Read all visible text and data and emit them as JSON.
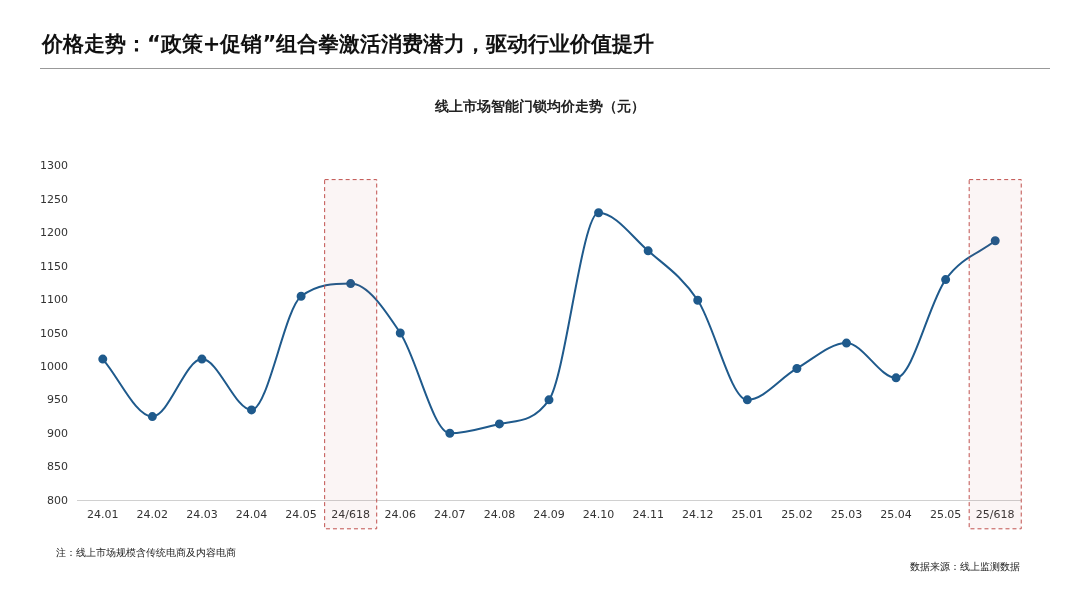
{
  "chart_data": {
    "type": "line",
    "title": "价格走势：“政策+促销”组合拳激活消费潜力，驱动行业价值提升",
    "subtitle": "线上市场智能门锁均价走势（元）",
    "categories": [
      "24.01",
      "24.02",
      "24.03",
      "24.04",
      "24.05",
      "24/618",
      "24.06",
      "24.07",
      "24.08",
      "24.09",
      "24.10",
      "24.11",
      "24.12",
      "25.01",
      "25.02",
      "25.03",
      "25.04",
      "25.05",
      "25/618"
    ],
    "series": [
      {
        "color": "#1f5a8c",
        "values": [
          1012,
          926,
          1012,
          936,
          1106,
          1125,
          1051,
          901,
          915,
          951,
          1231,
          1174,
          1100,
          951,
          998,
          1036,
          984,
          1131,
          1189
        ]
      }
    ],
    "ylim": [
      800,
      1300
    ],
    "yticks": [
      800,
      850,
      900,
      950,
      1000,
      1050,
      1100,
      1150,
      1200,
      1250,
      1300
    ],
    "grid": false,
    "legend": false,
    "marker": "circle",
    "line_style": "solid",
    "bands": [
      {
        "axis": "x",
        "from": "24/618",
        "to": "24/618",
        "color": "#c0504d"
      },
      {
        "axis": "x",
        "from": "25/618",
        "to": "25/618",
        "color": "#c0504d"
      }
    ],
    "annotations": [
      "注：线上市场规模含传统电商及内容电商",
      "数据来源：线上监测数据"
    ]
  }
}
